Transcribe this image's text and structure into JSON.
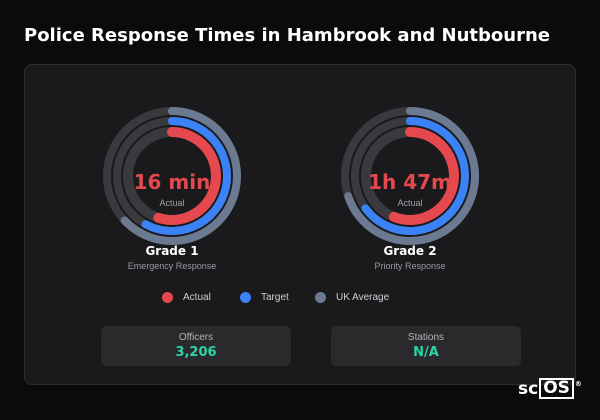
{
  "page": {
    "title": "Police Response Times in Hambrook and Nutbourne"
  },
  "colors": {
    "actual": "#e5484d",
    "target": "#3b82f6",
    "uk_average": "#6b7a90",
    "track": "#3a3a3e",
    "accent_value": "#2dd4a7"
  },
  "gauges": [
    {
      "value_text": "16 min",
      "value_caption": "Actual",
      "grade": "Grade 1",
      "grade_description": "Emergency Response",
      "fractions": {
        "actual": 0.55,
        "target": 0.58,
        "uk_average": 0.63
      }
    },
    {
      "value_text": "1h 47m",
      "value_caption": "Actual",
      "grade": "Grade 2",
      "grade_description": "Priority Response",
      "fractions": {
        "actual": 0.56,
        "target": 0.65,
        "uk_average": 0.7
      }
    }
  ],
  "legend": {
    "items": [
      {
        "label": "Actual",
        "color": "#e5484d"
      },
      {
        "label": "Target",
        "color": "#3b82f6"
      },
      {
        "label": "UK Average",
        "color": "#6b7a90"
      }
    ]
  },
  "stats": [
    {
      "label": "Officers",
      "value": "3,206"
    },
    {
      "label": "Stations",
      "value": "N/A"
    }
  ],
  "logo": {
    "prefix": "sc",
    "boxed": "OS",
    "mark": "®"
  }
}
